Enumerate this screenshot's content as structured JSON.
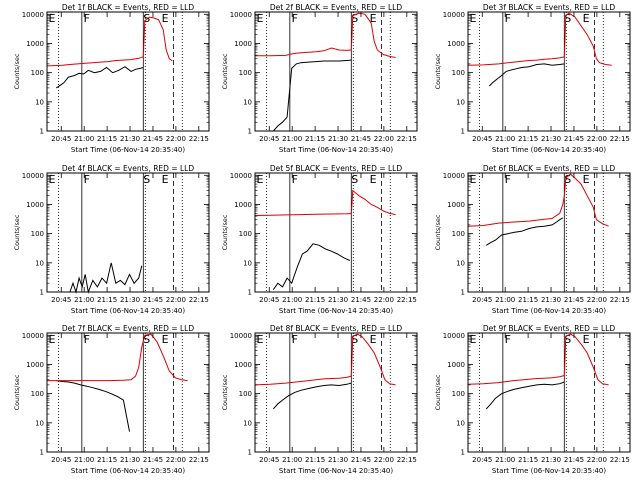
{
  "common": {
    "ylabel": "Counts/sec",
    "xlabel": "Start Time (06-Nov-14 20:35:40)",
    "x_ticks": [
      "20:45",
      "21:00",
      "21:15",
      "21:30",
      "21:45",
      "22:00",
      "22:15"
    ],
    "x_tick_minutes": [
      9.33,
      24.33,
      39.33,
      54.33,
      69.33,
      84.33,
      99.33
    ],
    "x_range_minutes": [
      0,
      106
    ],
    "y_ticks": [
      "1",
      "10",
      "100",
      "1000",
      "10000"
    ],
    "y_tick_values": [
      1,
      10,
      100,
      1000,
      10000
    ],
    "y_range": [
      1,
      12000
    ],
    "y_scale": "log",
    "colors": {
      "events": "#000000",
      "lld": "#e00000",
      "axes": "#000000"
    }
  },
  "markers": {
    "dotted_minutes": [
      7.5,
      64.3,
      88.5
    ],
    "solid_minutes": [
      22.8,
      63.0
    ],
    "dashed_minutes": [
      82.8
    ],
    "letters": [
      {
        "text": "E",
        "minute": 1.0
      },
      {
        "text": "F",
        "minute": 24.0
      },
      {
        "text": "S",
        "minute": 63.0
      },
      {
        "text": "E",
        "minute": 75.0
      }
    ]
  },
  "chart_data": [
    {
      "type": "line",
      "title": "Det 1f BLACK = Events, RED = LLD",
      "series": [
        {
          "name": "Events",
          "color": "#000000",
          "x": [
            6,
            9,
            11,
            14,
            18,
            21,
            24,
            27,
            31,
            35,
            39,
            43,
            47,
            51,
            55,
            58,
            61,
            63
          ],
          "y": [
            30,
            38,
            45,
            70,
            80,
            95,
            90,
            120,
            100,
            110,
            150,
            100,
            120,
            160,
            110,
            130,
            140,
            150
          ]
        },
        {
          "name": "LLD",
          "color": "#e00000",
          "x": [
            0,
            5,
            10,
            15,
            20,
            25,
            30,
            35,
            40,
            45,
            50,
            55,
            60,
            63,
            64,
            67,
            70,
            73,
            76,
            78,
            80,
            82
          ],
          "y": [
            170,
            175,
            180,
            190,
            200,
            210,
            220,
            230,
            240,
            260,
            270,
            280,
            310,
            350,
            6000,
            8000,
            7500,
            6500,
            3000,
            600,
            300,
            250
          ]
        }
      ]
    },
    {
      "type": "line",
      "title": "Det 2f BLACK = Events, RED = LLD",
      "series": [
        {
          "name": "Events",
          "color": "#000000",
          "x": [
            12,
            15,
            18,
            21,
            24,
            27,
            30,
            35,
            40,
            45,
            50,
            55,
            60,
            63
          ],
          "y": [
            1,
            1.5,
            2,
            3,
            140,
            200,
            220,
            230,
            240,
            250,
            250,
            250,
            260,
            270
          ]
        },
        {
          "name": "LLD",
          "color": "#e00000",
          "x": [
            0,
            10,
            20,
            25,
            30,
            35,
            40,
            45,
            50,
            55,
            60,
            63,
            64,
            68,
            72,
            76,
            78,
            80,
            84,
            88,
            92
          ],
          "y": [
            380,
            380,
            390,
            450,
            480,
            500,
            520,
            560,
            700,
            600,
            580,
            600,
            9000,
            11000,
            10000,
            5000,
            1200,
            600,
            420,
            360,
            330
          ]
        }
      ]
    },
    {
      "type": "line",
      "title": "Det 3f BLACK = Events, RED = LLD",
      "series": [
        {
          "name": "Events",
          "color": "#000000",
          "x": [
            14,
            16,
            19,
            22,
            25,
            30,
            35,
            40,
            45,
            50,
            55,
            60,
            63
          ],
          "y": [
            35,
            45,
            60,
            80,
            110,
            130,
            150,
            160,
            190,
            200,
            180,
            190,
            200
          ]
        },
        {
          "name": "LLD",
          "color": "#e00000",
          "x": [
            0,
            10,
            20,
            30,
            40,
            45,
            50,
            55,
            60,
            63,
            64,
            66,
            70,
            74,
            78,
            82,
            84,
            86,
            90,
            94
          ],
          "y": [
            180,
            185,
            200,
            230,
            260,
            270,
            290,
            300,
            320,
            350,
            9000,
            11000,
            8000,
            4000,
            2000,
            800,
            300,
            220,
            190,
            180
          ]
        }
      ]
    },
    {
      "type": "line",
      "title": "Det 4f BLACK = Events, RED = LLD",
      "series": [
        {
          "name": "Events",
          "color": "#000000",
          "x": [
            15,
            17,
            19,
            21,
            23,
            25,
            27,
            30,
            33,
            36,
            39,
            42,
            45,
            48,
            51,
            54,
            57,
            60,
            62
          ],
          "y": [
            1,
            2,
            1,
            3,
            1.5,
            4,
            1,
            2.5,
            1.5,
            3,
            2,
            10,
            2,
            2.5,
            1.8,
            4,
            2,
            3,
            8
          ]
        }
      ]
    },
    {
      "type": "line",
      "title": "Det 5f BLACK = Events, RED = LLD",
      "series": [
        {
          "name": "Events",
          "color": "#000000",
          "x": [
            12,
            15,
            18,
            21,
            24,
            26,
            28,
            31,
            34,
            38,
            42,
            46,
            50,
            54,
            58,
            62
          ],
          "y": [
            1.2,
            2,
            1.5,
            3,
            2,
            4,
            8,
            20,
            25,
            45,
            40,
            30,
            25,
            20,
            15,
            12
          ]
        },
        {
          "name": "LLD",
          "color": "#e00000",
          "x": [
            0,
            10,
            20,
            30,
            40,
            50,
            60,
            63,
            64,
            68,
            72,
            76,
            80,
            84,
            88,
            92
          ],
          "y": [
            420,
            430,
            440,
            450,
            460,
            470,
            480,
            490,
            3000,
            2000,
            1500,
            1000,
            800,
            600,
            500,
            450
          ]
        }
      ]
    },
    {
      "type": "line",
      "title": "Det 6f BLACK = Events, RED = LLD",
      "series": [
        {
          "name": "Events",
          "color": "#000000",
          "x": [
            12,
            15,
            18,
            22,
            26,
            30,
            35,
            40,
            45,
            50,
            55,
            58,
            60,
            62
          ],
          "y": [
            40,
            50,
            60,
            90,
            100,
            110,
            120,
            150,
            170,
            180,
            200,
            250,
            300,
            350
          ]
        },
        {
          "name": "LLD",
          "color": "#e00000",
          "x": [
            0,
            10,
            20,
            30,
            40,
            50,
            55,
            60,
            62,
            63,
            64,
            67,
            70,
            74,
            78,
            82,
            84,
            88,
            92
          ],
          "y": [
            180,
            190,
            230,
            250,
            270,
            310,
            330,
            500,
            1000,
            2000,
            8000,
            11000,
            8000,
            5000,
            2000,
            800,
            300,
            220,
            180
          ]
        }
      ]
    },
    {
      "type": "line",
      "title": "Det 7f BLACK = Events, RED = LLD",
      "series": [
        {
          "name": "Events",
          "color": "#000000",
          "x": [
            6,
            10,
            14,
            18,
            22,
            26,
            30,
            34,
            38,
            42,
            46,
            50,
            54
          ],
          "y": [
            280,
            260,
            250,
            230,
            200,
            180,
            160,
            140,
            120,
            100,
            80,
            60,
            5
          ]
        },
        {
          "name": "LLD",
          "color": "#e00000",
          "x": [
            0,
            10,
            20,
            30,
            40,
            50,
            55,
            58,
            60,
            62,
            64,
            68,
            72,
            76,
            80,
            84,
            88,
            92
          ],
          "y": [
            280,
            280,
            280,
            280,
            280,
            290,
            300,
            400,
            800,
            4000,
            10000,
            11000,
            6000,
            2000,
            600,
            350,
            300,
            280
          ]
        }
      ]
    },
    {
      "type": "line",
      "title": "Det 8f BLACK = Events, RED = LLD",
      "series": [
        {
          "name": "Events",
          "color": "#000000",
          "x": [
            12,
            15,
            18,
            22,
            26,
            30,
            35,
            40,
            45,
            50,
            55,
            60,
            63
          ],
          "y": [
            30,
            45,
            60,
            85,
            110,
            130,
            150,
            170,
            190,
            200,
            190,
            210,
            230
          ]
        },
        {
          "name": "LLD",
          "color": "#e00000",
          "x": [
            0,
            10,
            20,
            30,
            40,
            45,
            50,
            55,
            60,
            63,
            64,
            67,
            70,
            74,
            78,
            82,
            85,
            88,
            92
          ],
          "y": [
            200,
            210,
            230,
            260,
            300,
            320,
            330,
            340,
            360,
            400,
            9000,
            11000,
            9000,
            5000,
            2500,
            800,
            300,
            220,
            200
          ]
        }
      ]
    },
    {
      "type": "line",
      "title": "Det 9f BLACK = Events, RED = LLD",
      "series": [
        {
          "name": "Events",
          "color": "#000000",
          "x": [
            12,
            15,
            18,
            22,
            26,
            30,
            35,
            40,
            45,
            50,
            55,
            60,
            63
          ],
          "y": [
            30,
            45,
            70,
            100,
            120,
            140,
            160,
            180,
            200,
            210,
            200,
            220,
            250
          ]
        },
        {
          "name": "LLD",
          "color": "#e00000",
          "x": [
            0,
            10,
            20,
            30,
            40,
            45,
            50,
            55,
            60,
            63,
            64,
            67,
            70,
            74,
            78,
            82,
            85,
            88,
            92
          ],
          "y": [
            210,
            220,
            240,
            280,
            310,
            330,
            340,
            350,
            380,
            420,
            9000,
            11000,
            9000,
            5000,
            2500,
            800,
            300,
            220,
            200
          ]
        }
      ]
    }
  ]
}
